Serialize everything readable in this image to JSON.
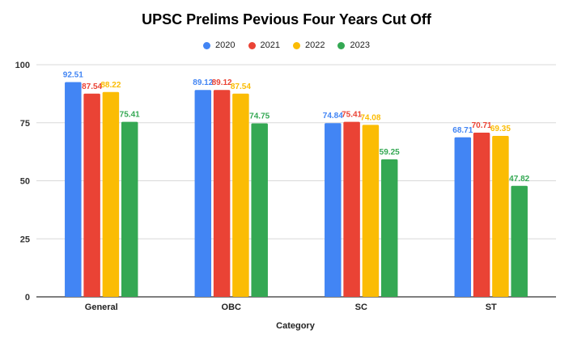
{
  "chart_data": {
    "type": "bar",
    "title": "UPSC Prelims Pevious Four Years Cut Off",
    "xlabel": "Category",
    "ylabel": "",
    "ylim": [
      0,
      100
    ],
    "yticks": [
      "0",
      "25",
      "50",
      "75",
      "100"
    ],
    "grid": true,
    "legend_position": "top",
    "categories": [
      "General",
      "OBC",
      "SC",
      "ST"
    ],
    "series": [
      {
        "name": "2020",
        "color": "#4285F4",
        "values": [
          92.51,
          89.12,
          74.84,
          68.71
        ],
        "labels": [
          "92.51",
          "89.12",
          "74.84",
          "68.71"
        ]
      },
      {
        "name": "2021",
        "color": "#EA4335",
        "values": [
          87.54,
          89.12,
          75.41,
          70.71
        ],
        "labels": [
          "87.54",
          "89.12",
          "75.41",
          "70.71"
        ]
      },
      {
        "name": "2022",
        "color": "#FBBC04",
        "values": [
          88.22,
          87.54,
          74.08,
          69.35
        ],
        "labels": [
          "88.22",
          "87.54",
          "74.08",
          "69.35"
        ]
      },
      {
        "name": "2023",
        "color": "#34A853",
        "values": [
          75.41,
          74.75,
          59.25,
          47.82
        ],
        "labels": [
          "75.41",
          "74.75",
          "59.25",
          "47.82"
        ]
      }
    ]
  }
}
